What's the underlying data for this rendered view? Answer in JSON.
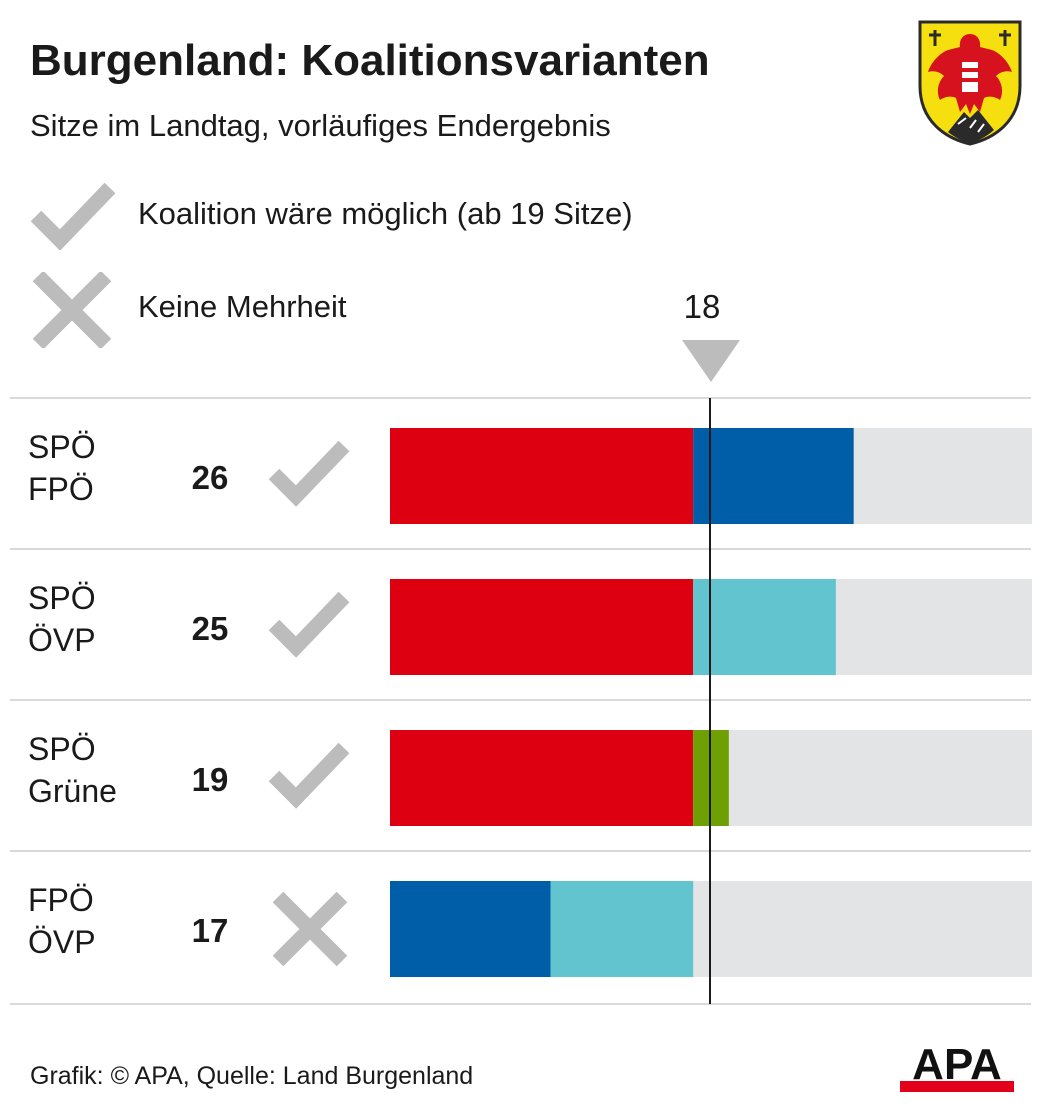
{
  "title": "Burgenland: Koalitionsvarianten",
  "subtitle": "Sitze im Landtag, vorläufiges Endergebnis",
  "legend": {
    "possible_label": "Koalition wäre möglich (ab 19 Sitze)",
    "no_majority_label": "Keine Mehrheit"
  },
  "footer": "Grafik: © APA, Quelle: Land Burgenland",
  "logo": {
    "text": "APA",
    "icon": "apa-logo"
  },
  "emblem": {
    "icon": "burgenland-coat-of-arms"
  },
  "colors": {
    "SPÖ": "#dd0010",
    "FPÖ": "#005ea8",
    "ÖVP": "#62c4cf",
    "Grüne": "#6ea004",
    "background_bar": "#e3e4e5",
    "check": "#bcbcbc",
    "accent_red": "#e2001a"
  },
  "chart_data": {
    "type": "bar",
    "orientation": "horizontal-stacked",
    "threshold": 18,
    "threshold_label": "18",
    "total_seats": 36,
    "rows": [
      {
        "parties": [
          "SPÖ",
          "FPÖ"
        ],
        "values": [
          17,
          9
        ],
        "total": 26,
        "total_label": "26",
        "majority": true,
        "status_icon": "check-icon"
      },
      {
        "parties": [
          "SPÖ",
          "ÖVP"
        ],
        "values": [
          17,
          8
        ],
        "total": 25,
        "total_label": "25",
        "majority": true,
        "status_icon": "check-icon"
      },
      {
        "parties": [
          "SPÖ",
          "Grüne"
        ],
        "values": [
          17,
          2
        ],
        "total": 19,
        "total_label": "19",
        "majority": true,
        "status_icon": "check-icon"
      },
      {
        "parties": [
          "FPÖ",
          "ÖVP"
        ],
        "values": [
          9,
          8
        ],
        "total": 17,
        "total_label": "17",
        "majority": false,
        "status_icon": "cross-icon"
      }
    ]
  }
}
